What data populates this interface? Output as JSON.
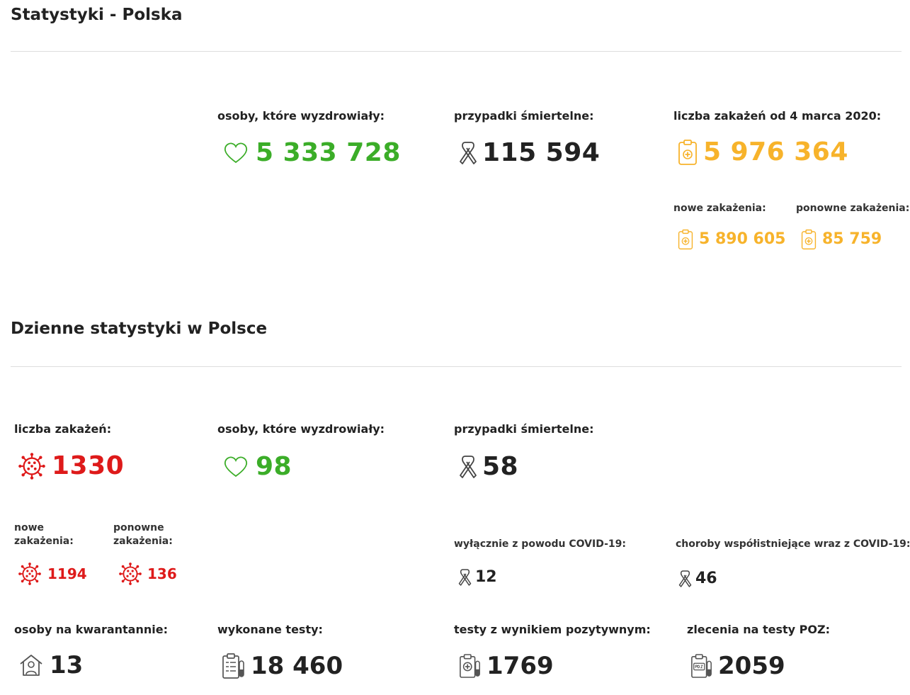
{
  "colors": {
    "green": "#3bad28",
    "orange": "#f7b32b",
    "red": "#de1a1a",
    "text": "#222222",
    "icon_gray": "#444444"
  },
  "overall": {
    "title": "Statystyki - Polska",
    "recovered": {
      "label": "osoby, które wyzdrowiały:",
      "value": "5 333 728",
      "icon": "heart-icon"
    },
    "deaths": {
      "label": "przypadki śmiertelne:",
      "value": "115 594",
      "icon": "ribbon-icon"
    },
    "infections": {
      "label": "liczba zakażeń od 4 marca 2020:",
      "value": "5 976 364",
      "icon": "clipboard-plus-icon"
    },
    "new_infections": {
      "label": "nowe zakażenia:",
      "value": "5 890 605"
    },
    "reinfections": {
      "label": "ponowne zakażenia:",
      "value": "85 759"
    }
  },
  "daily": {
    "title": "Dzienne statystyki w Polsce",
    "infections": {
      "label": "liczba zakażeń:",
      "value": "1330",
      "icon": "virus-icon"
    },
    "recovered": {
      "label": "osoby, które wyzdrowiały:",
      "value": "98"
    },
    "deaths": {
      "label": "przypadki śmiertelne:",
      "value": "58"
    },
    "new_infections": {
      "label_line1": "nowe",
      "label_line2": "zakażenia:",
      "value": "1194"
    },
    "reinfections": {
      "label_line1": "ponowne",
      "label_line2": "zakażenia:",
      "value": "136"
    },
    "covid_only": {
      "label": "wyłącznie z powodu COVID-19:",
      "value": "12"
    },
    "comorbid": {
      "label": "choroby współistniejące wraz z COVID-19:",
      "value": "46"
    },
    "quarantine": {
      "label": "osoby na kwarantannie:",
      "value": "13",
      "icon": "house-person-icon"
    },
    "tests": {
      "label": "wykonane testy:",
      "value": "18 460",
      "icon": "test-clipboard-icon"
    },
    "positive_tests": {
      "label": "testy z wynikiem pozytywnym:",
      "value": "1769",
      "icon": "positive-test-icon"
    },
    "poz_referrals": {
      "label": "zlecenia na testy POZ:",
      "value": "2059",
      "icon": "poz-test-icon"
    }
  }
}
